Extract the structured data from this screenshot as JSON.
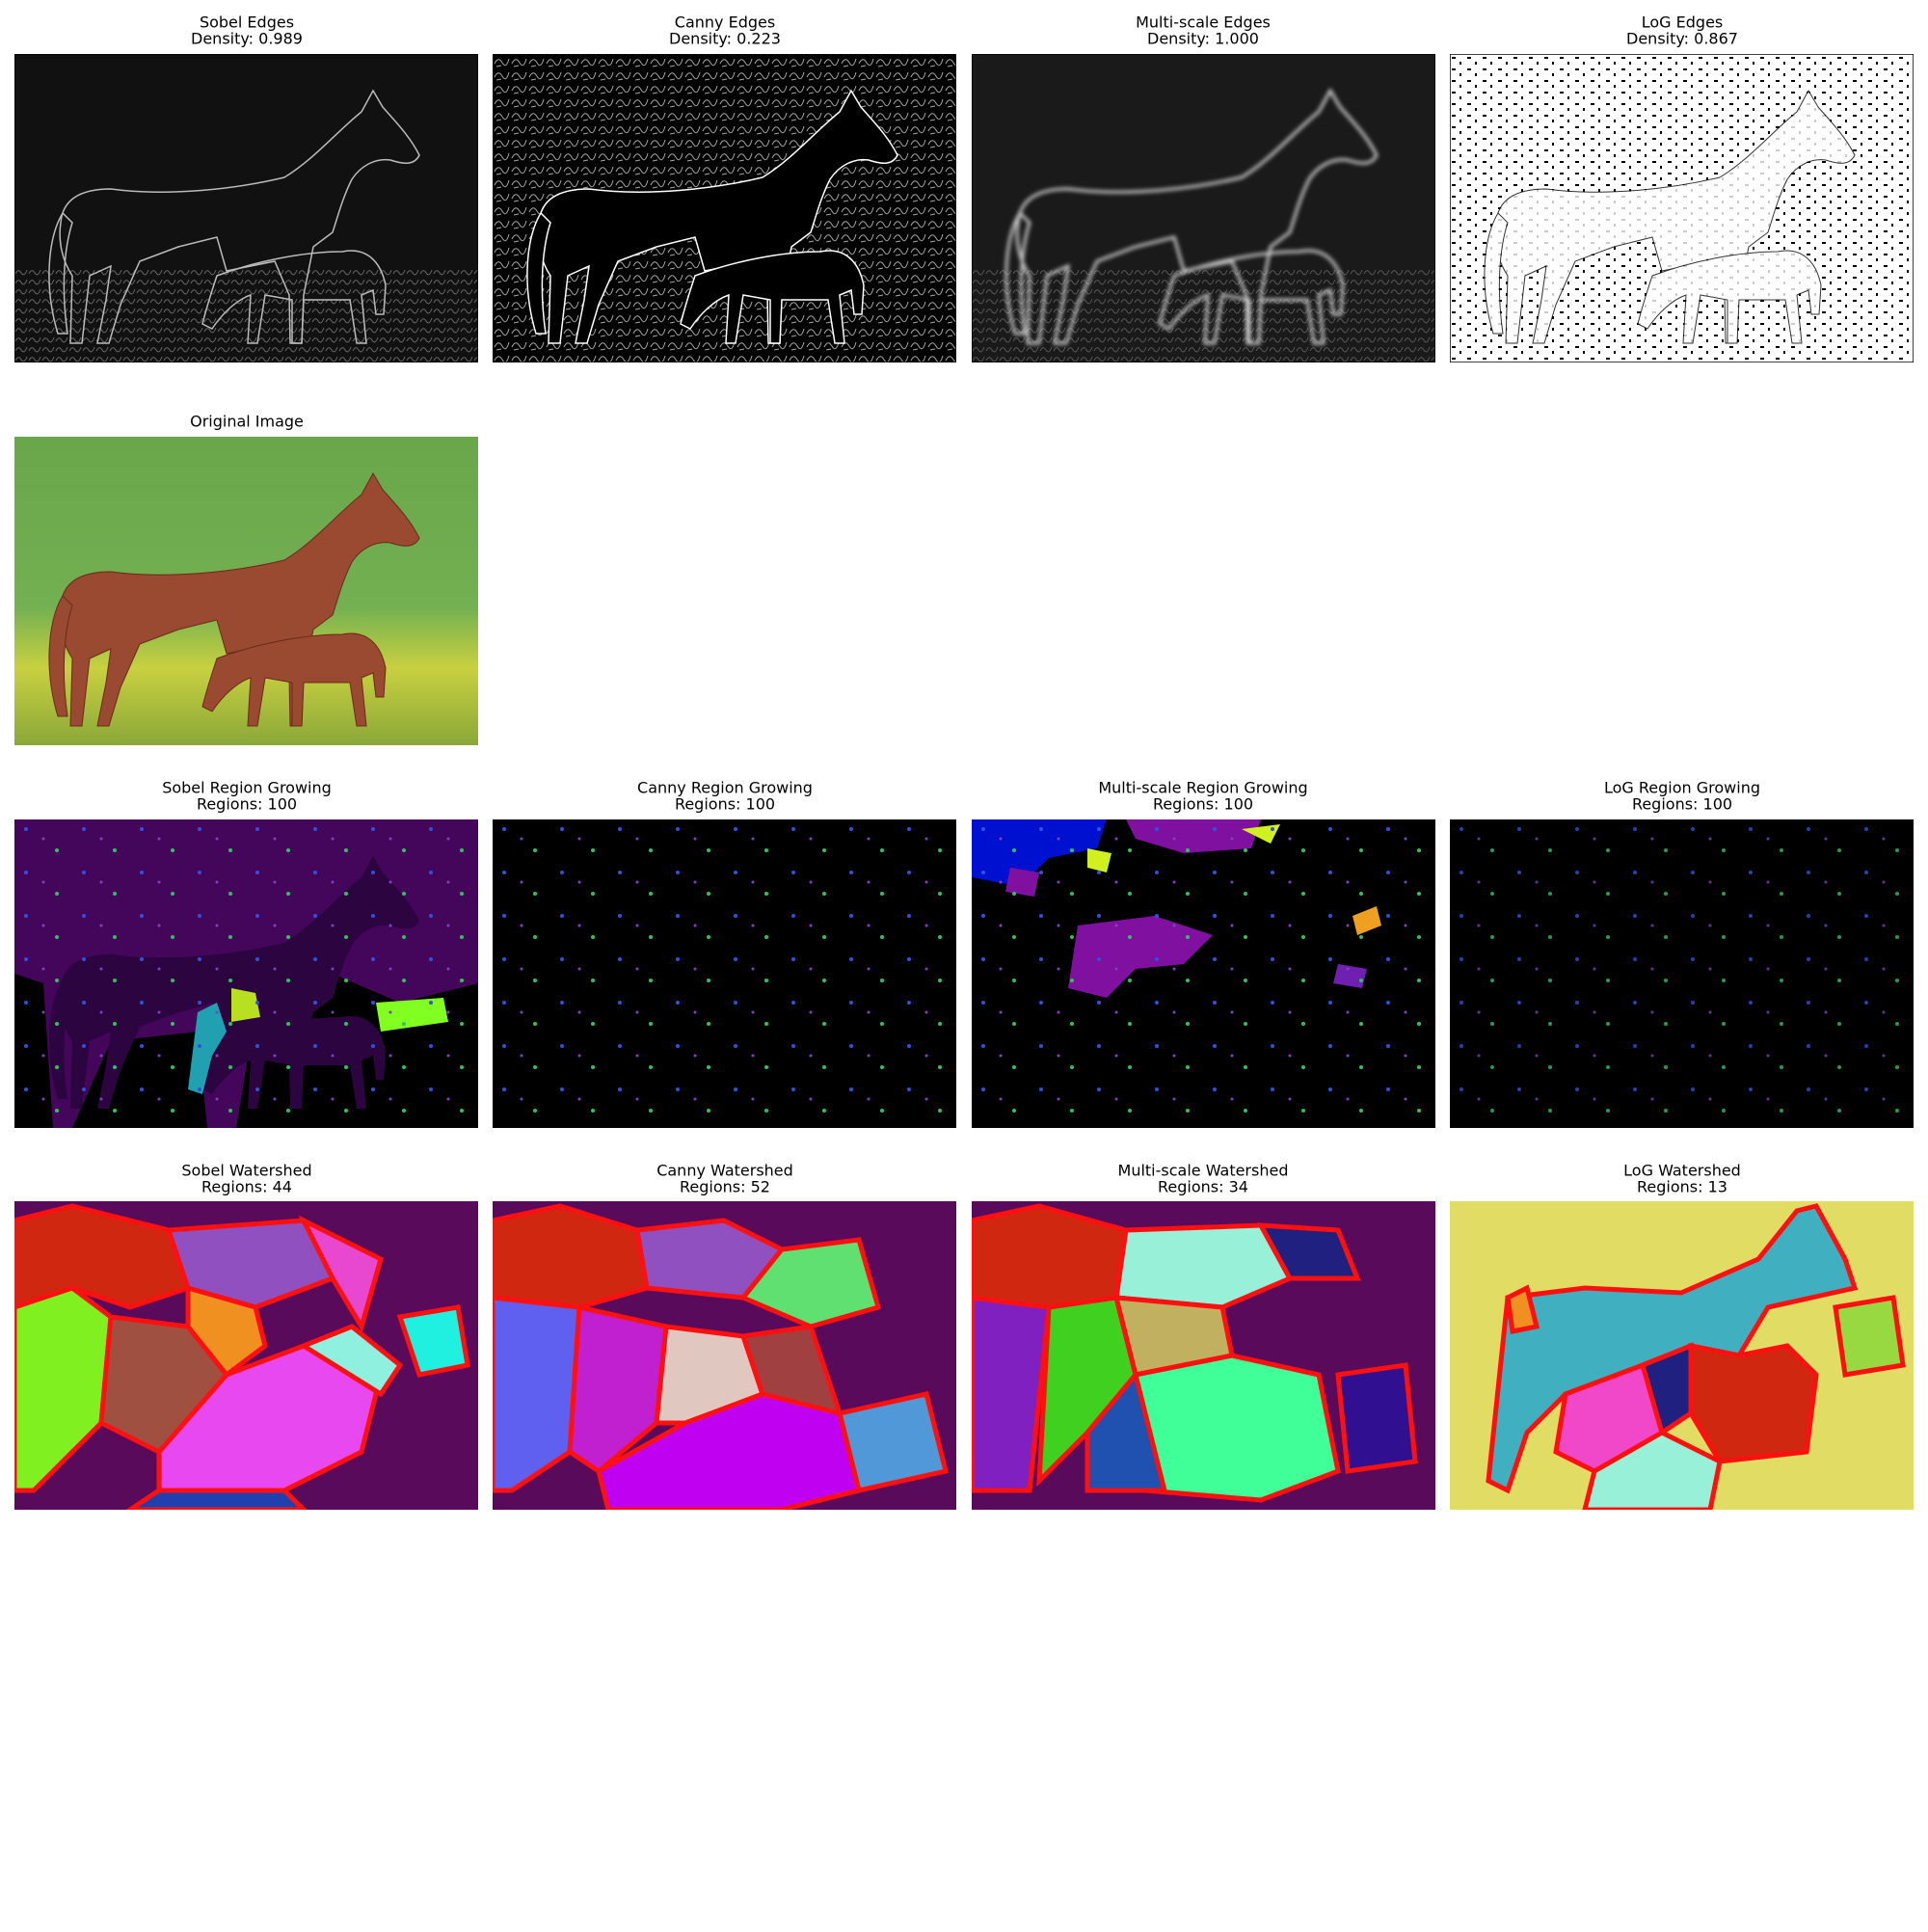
{
  "panels": [
    {
      "title": "Sobel Edges",
      "subtitle": "Density: 0.989"
    },
    {
      "title": "Canny Edges",
      "subtitle": "Density: 0.223"
    },
    {
      "title": "Multi-scale Edges",
      "subtitle": "Density: 1.000"
    },
    {
      "title": "LoG Edges",
      "subtitle": "Density: 0.867"
    },
    {
      "title": "Original Image"
    },
    {
      "title": "Sobel Region Growing",
      "subtitle": "Regions: 100"
    },
    {
      "title": "Canny Region Growing",
      "subtitle": "Regions: 100"
    },
    {
      "title": "Multi-scale Region Growing",
      "subtitle": "Regions: 100"
    },
    {
      "title": "LoG Region Growing",
      "subtitle": "Regions: 100"
    },
    {
      "title": "Sobel Watershed",
      "subtitle": "Regions: 44"
    },
    {
      "title": "Canny Watershed",
      "subtitle": "Regions: 52"
    },
    {
      "title": "Multi-scale Watershed",
      "subtitle": "Regions: 34"
    },
    {
      "title": "LoG Watershed",
      "subtitle": "Regions: 13"
    }
  ]
}
